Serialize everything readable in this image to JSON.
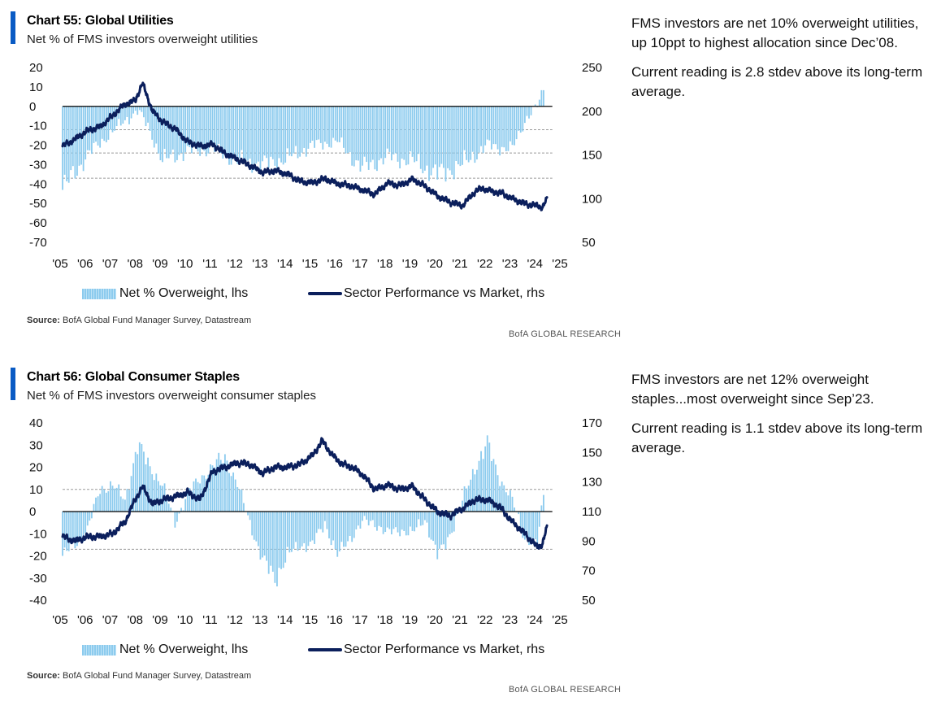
{
  "charts": [
    {
      "title": "Chart 55: Global Utilities",
      "subtitle": "Net % of FMS investors overweight utilities",
      "legend": {
        "bars": "Net % Overweight, lhs",
        "line": "Sector Performance vs Market, rhs"
      },
      "source_label": "Source:",
      "source_text": "BofA Global Fund Manager Survey, Datastream",
      "brand": "BofA GLOBAL RESEARCH",
      "commentary": [
        "FMS investors are net 10% overweight utilities, up 10ppt to highest allocation since Dec’08.",
        "Current reading is 2.8 stdev above its long-term average."
      ]
    },
    {
      "title": "Chart 56: Global Consumer Staples",
      "subtitle": "Net % of FMS investors overweight consumer staples",
      "legend": {
        "bars": "Net % Overweight, lhs",
        "line": "Sector Performance vs Market, rhs"
      },
      "source_label": "Source:",
      "source_text": "BofA Global Fund Manager Survey, Datastream",
      "brand": "BofA GLOBAL RESEARCH",
      "commentary": [
        "FMS investors are net 12% overweight staples...most overweight since Sep’23.",
        "Current reading is 1.1 stdev above its long-term average."
      ]
    }
  ],
  "chart_data": [
    {
      "type": "bar",
      "title": "Chart 55: Global Utilities",
      "x_tick_labels": [
        "'05",
        "'06",
        "'07",
        "'08",
        "'09",
        "'10",
        "'11",
        "'12",
        "'13",
        "'14",
        "'15",
        "'16",
        "'17",
        "'18",
        "'19",
        "'20",
        "'21",
        "'22",
        "'23",
        "'24",
        "'25"
      ],
      "x_range": [
        2005,
        2025
      ],
      "left_axis": {
        "ylim": [
          -70,
          20
        ],
        "ticks": [
          "20",
          "10",
          "0",
          "-10",
          "-20",
          "-30",
          "-40",
          "-50",
          "-60",
          "-70"
        ]
      },
      "right_axis": {
        "ylim": [
          50,
          250
        ],
        "ticks": [
          "250",
          "200",
          "150",
          "100",
          "50"
        ]
      },
      "reference_lines_lhs": [
        -12,
        -24,
        -37
      ],
      "series": [
        {
          "name": "Net % Overweight, lhs",
          "axis": "left",
          "color": "#8ccbee",
          "x": [
            2005.0,
            2006.0,
            2007.0,
            2008.0,
            2008.4,
            2009.0,
            2010.0,
            2011.0,
            2012.0,
            2013.0,
            2014.0,
            2015.0,
            2016.0,
            2017.0,
            2018.0,
            2019.0,
            2020.0,
            2021.0,
            2022.0,
            2023.0,
            2023.6,
            2024.0,
            2024.3
          ],
          "values": [
            -43,
            -25,
            -13,
            -2,
            -10,
            -28,
            -23,
            -22,
            -28,
            -30,
            -27,
            -20,
            -18,
            -32,
            -26,
            -28,
            -35,
            -30,
            -20,
            -22,
            -5,
            0,
            10
          ]
        },
        {
          "name": "Sector Performance vs Market, rhs",
          "axis": "right",
          "color": "#0b1f5c",
          "x": [
            2005.0,
            2005.5,
            2006.0,
            2006.5,
            2007.0,
            2007.5,
            2007.9,
            2008.2,
            2008.6,
            2009.0,
            2009.5,
            2010.0,
            2010.5,
            2011.0,
            2011.5,
            2012.0,
            2012.5,
            2013.0,
            2013.5,
            2014.0,
            2014.5,
            2015.0,
            2015.5,
            2016.0,
            2016.5,
            2017.0,
            2017.5,
            2018.0,
            2018.5,
            2019.0,
            2019.3,
            2019.7,
            2020.0,
            2020.5,
            2021.0,
            2021.5,
            2021.8,
            2022.2,
            2022.6,
            2023.0,
            2023.5,
            2024.0,
            2024.2,
            2024.4
          ],
          "values": [
            160,
            168,
            178,
            182,
            195,
            208,
            212,
            232,
            200,
            188,
            180,
            165,
            160,
            162,
            152,
            145,
            138,
            130,
            132,
            128,
            120,
            118,
            123,
            117,
            115,
            110,
            105,
            118,
            115,
            122,
            118,
            110,
            103,
            96,
            92,
            108,
            112,
            108,
            106,
            100,
            94,
            92,
            90,
            100
          ]
        }
      ]
    },
    {
      "type": "bar",
      "title": "Chart 56: Global Consumer Staples",
      "x_tick_labels": [
        "'05",
        "'06",
        "'07",
        "'08",
        "'09",
        "'10",
        "'11",
        "'12",
        "'13",
        "'14",
        "'15",
        "'16",
        "'17",
        "'18",
        "'19",
        "'20",
        "'21",
        "'22",
        "'23",
        "'24",
        "'25"
      ],
      "x_range": [
        2005,
        2025
      ],
      "left_axis": {
        "ylim": [
          -40,
          40
        ],
        "ticks": [
          "40",
          "30",
          "20",
          "10",
          "0",
          "-10",
          "-20",
          "-30",
          "-40"
        ]
      },
      "right_axis": {
        "ylim": [
          50,
          170
        ],
        "ticks": [
          "170",
          "150",
          "130",
          "110",
          "90",
          "70",
          "50"
        ]
      },
      "reference_lines_lhs": [
        10,
        -17
      ],
      "series": [
        {
          "name": "Net % Overweight, lhs",
          "axis": "left",
          "color": "#8ccbee",
          "x": [
            2005.0,
            2005.5,
            2006.0,
            2006.5,
            2007.0,
            2007.5,
            2008.0,
            2008.5,
            2009.0,
            2009.5,
            2010.0,
            2010.5,
            2011.0,
            2011.5,
            2012.0,
            2012.5,
            2013.0,
            2013.5,
            2014.0,
            2014.5,
            2015.0,
            2015.5,
            2016.0,
            2016.5,
            2017.0,
            2017.5,
            2018.0,
            2018.5,
            2019.0,
            2019.5,
            2020.0,
            2020.3,
            2020.7,
            2021.0,
            2021.5,
            2022.0,
            2022.5,
            2023.0,
            2023.5,
            2024.0,
            2024.3
          ],
          "values": [
            -20,
            -15,
            -8,
            10,
            12,
            5,
            30,
            20,
            12,
            -5,
            8,
            15,
            20,
            25,
            12,
            -5,
            -22,
            -30,
            -20,
            -15,
            -15,
            -5,
            -20,
            -12,
            -5,
            -5,
            -10,
            -8,
            -10,
            -3,
            -20,
            -15,
            -5,
            5,
            20,
            30,
            15,
            5,
            -12,
            -15,
            12
          ]
        },
        {
          "name": "Sector Performance vs Market, rhs",
          "axis": "right",
          "color": "#0b1f5c",
          "x": [
            2005.0,
            2005.5,
            2006.0,
            2006.5,
            2007.0,
            2007.5,
            2007.9,
            2008.2,
            2008.6,
            2009.0,
            2009.5,
            2010.0,
            2010.5,
            2011.0,
            2011.5,
            2012.0,
            2012.5,
            2013.0,
            2013.5,
            2014.0,
            2014.5,
            2015.0,
            2015.4,
            2015.8,
            2016.2,
            2016.6,
            2017.0,
            2017.5,
            2018.0,
            2018.5,
            2019.0,
            2019.5,
            2020.0,
            2020.5,
            2021.0,
            2021.5,
            2022.0,
            2022.5,
            2023.0,
            2023.5,
            2024.0,
            2024.2,
            2024.4
          ],
          "values": [
            93,
            90,
            93,
            93,
            95,
            103,
            118,
            127,
            115,
            118,
            120,
            123,
            118,
            137,
            140,
            143,
            142,
            136,
            140,
            140,
            142,
            148,
            158,
            148,
            142,
            140,
            135,
            125,
            128,
            125,
            127,
            118,
            110,
            107,
            112,
            118,
            118,
            113,
            103,
            95,
            86,
            88,
            100
          ]
        }
      ]
    }
  ]
}
